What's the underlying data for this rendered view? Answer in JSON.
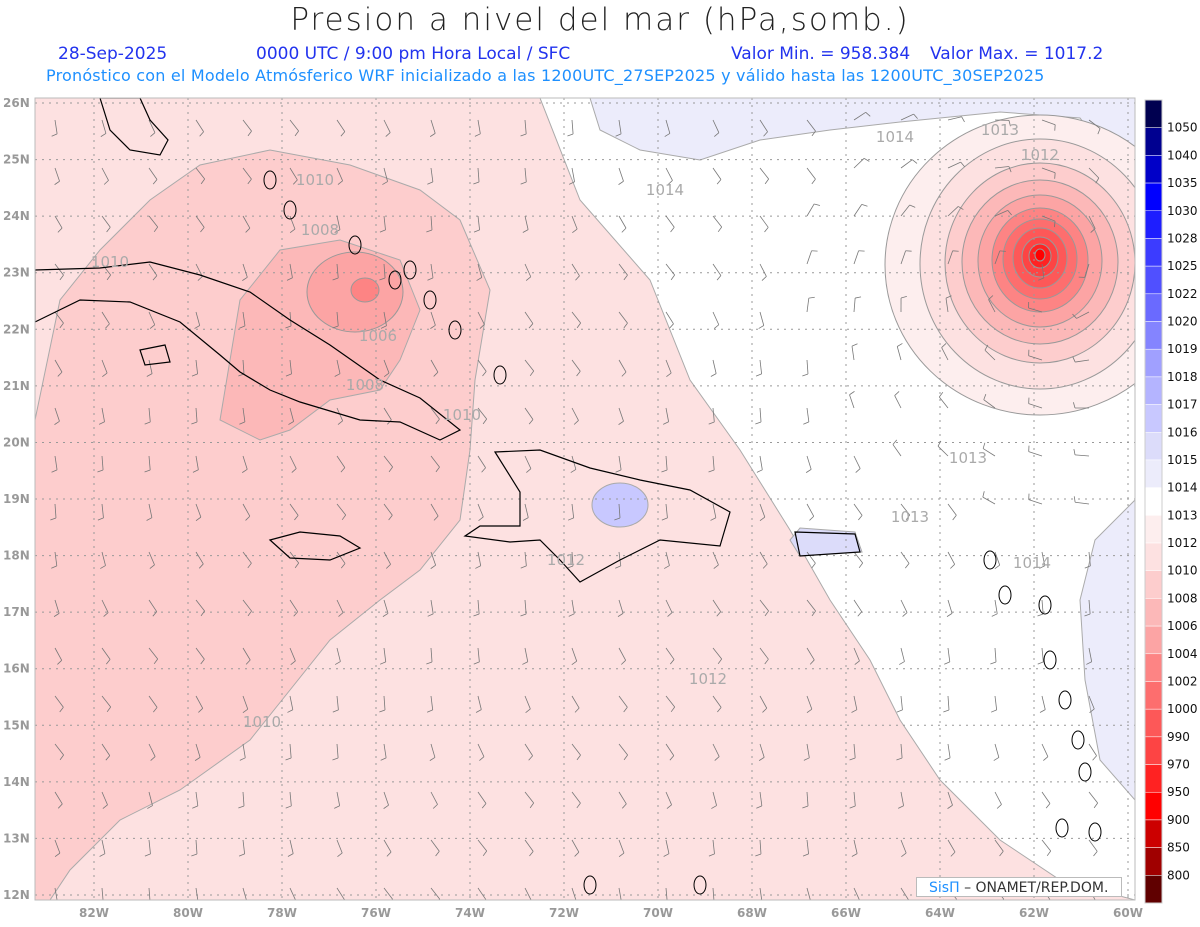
{
  "header": {
    "title": "Presion a nivel del mar (hPa,somb.)",
    "date": "28-Sep-2025",
    "time": "0000 UTC / 9:00 pm Hora Local / SFC",
    "min": "Valor Min. = 958.384",
    "max": "Valor Max. = 1017.2",
    "subtitle": "Pronóstico con el Modelo Atmósferico WRF inicializado a las 1200UTC_27SEP2025 y válido hasta las  1200UTC_30SEP2025"
  },
  "axes": {
    "lon_labels": [
      "82W",
      "80W",
      "78W",
      "76W",
      "74W",
      "72W",
      "70W",
      "68W",
      "66W",
      "64W",
      "62W",
      "60W"
    ],
    "lat_labels": [
      "26N",
      "25N",
      "24N",
      "23N",
      "22N",
      "21N",
      "20N",
      "19N",
      "18N",
      "17N",
      "16N",
      "15N",
      "14N",
      "13N",
      "12N"
    ]
  },
  "contour_labels": [
    "1014",
    "1014",
    "1013",
    "1013",
    "1013",
    "1012",
    "1012",
    "1012",
    "1010",
    "1010",
    "1010",
    "1010",
    "1008",
    "1008",
    "1006",
    "1014"
  ],
  "colorbar": {
    "labels": [
      "1050",
      "1040",
      "1035",
      "1030",
      "1028",
      "1025",
      "1022",
      "1020",
      "1019",
      "1018",
      "1017",
      "1016",
      "1015",
      "1014",
      "1013",
      "1012",
      "1010",
      "1008",
      "1006",
      "1004",
      "1002",
      "1000",
      "990",
      "970",
      "950",
      "900",
      "850",
      "800"
    ],
    "colors": [
      "#000050",
      "#000090",
      "#0000c8",
      "#0000ff",
      "#1e1eff",
      "#3c3cff",
      "#5050ff",
      "#6a6aff",
      "#8484ff",
      "#a0a0ff",
      "#b4b4ff",
      "#c8c8ff",
      "#dcdcfa",
      "#ececfb",
      "#ffffff",
      "#fdeeee",
      "#fde1e1",
      "#fdcdcd",
      "#fcb8b8",
      "#fca4a4",
      "#fd8484",
      "#fd6e6e",
      "#fd5858",
      "#fd4444",
      "#ff2222",
      "#ff0000",
      "#cc0000",
      "#a00000",
      "#600000"
    ]
  },
  "credit": {
    "brand": "SisΠ",
    "text": "– ONAMET/REP.DOM."
  }
}
